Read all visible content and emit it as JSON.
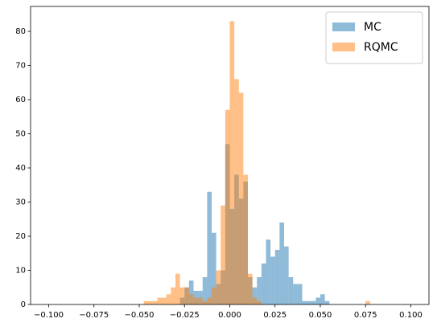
{
  "chart_data": {
    "type": "histogram",
    "bins": [
      -0.1,
      -0.0975,
      -0.095,
      -0.0925,
      -0.09,
      -0.0875,
      -0.085,
      -0.0825,
      -0.08,
      -0.0775,
      -0.075,
      -0.0725,
      -0.07,
      -0.0675,
      -0.065,
      -0.0625,
      -0.06,
      -0.0575,
      -0.055,
      -0.0525,
      -0.05,
      -0.0475,
      -0.045,
      -0.0425,
      -0.04,
      -0.0375,
      -0.035,
      -0.0325,
      -0.03,
      -0.0275,
      -0.025,
      -0.0225,
      -0.02,
      -0.0175,
      -0.015,
      -0.0125,
      -0.01,
      -0.0075,
      -0.005,
      -0.0025,
      0,
      0.0025,
      0.005,
      0.0075,
      0.01,
      0.0125,
      0.015,
      0.0175,
      0.02,
      0.0225,
      0.025,
      0.0275,
      0.03,
      0.0325,
      0.035,
      0.0375,
      0.04,
      0.0425,
      0.045,
      0.0475,
      0.05,
      0.0525,
      0.055,
      0.0575,
      0.06,
      0.0625,
      0.065,
      0.0675,
      0.07,
      0.0725,
      0.075,
      0.0775,
      0.08,
      0.0825,
      0.085,
      0.0875,
      0.09,
      0.0925,
      0.095,
      0.0975,
      0.1
    ],
    "series": [
      {
        "name": "MC",
        "color": "#1f77b4",
        "values": [
          0,
          0,
          0,
          0,
          0,
          0,
          0,
          0,
          0,
          0,
          0,
          0,
          0,
          0,
          0,
          0,
          0,
          0,
          0,
          0,
          0,
          0,
          0,
          0,
          0,
          0,
          0,
          0,
          0,
          2,
          5,
          7,
          4,
          4,
          8,
          33,
          21,
          6,
          10,
          47,
          28,
          38,
          31,
          36,
          8,
          5,
          8,
          12,
          19,
          14,
          16,
          24,
          17,
          8,
          6,
          6,
          1,
          1,
          1,
          2,
          3,
          1,
          0,
          0,
          0,
          0,
          0,
          0,
          0,
          0,
          0,
          0,
          0,
          0,
          0,
          0,
          0,
          0,
          0,
          0
        ]
      },
      {
        "name": "RQMC",
        "color": "#ff7f0e",
        "values": [
          0,
          0,
          0,
          0,
          0,
          0,
          0,
          0,
          0,
          0,
          0,
          0,
          0,
          0,
          0,
          0,
          0,
          0,
          0,
          0,
          0,
          1,
          1,
          1,
          2,
          2,
          3,
          5,
          9,
          5,
          5,
          3,
          2,
          2,
          1,
          2,
          5,
          10,
          29,
          57,
          83,
          66,
          62,
          38,
          9,
          2,
          1,
          0,
          0,
          0,
          0,
          0,
          0,
          0,
          0,
          0,
          0,
          0,
          0,
          0,
          0,
          0,
          0,
          0,
          0,
          0,
          0,
          0,
          0,
          0,
          1,
          0,
          0,
          0,
          0,
          0,
          0,
          0,
          0,
          0
        ]
      }
    ],
    "alpha": 0.5,
    "xlim": [
      -0.11,
      0.11
    ],
    "ylim": [
      0,
      87.3
    ],
    "xticks": [
      {
        "value": -0.1,
        "label": "−0.100"
      },
      {
        "value": -0.075,
        "label": "−0.075"
      },
      {
        "value": -0.05,
        "label": "−0.050"
      },
      {
        "value": -0.025,
        "label": "−0.025"
      },
      {
        "value": 0,
        "label": "0.000"
      },
      {
        "value": 0.025,
        "label": "0.025"
      },
      {
        "value": 0.05,
        "label": "0.050"
      },
      {
        "value": 0.075,
        "label": "0.075"
      },
      {
        "value": 0.1,
        "label": "0.100"
      }
    ],
    "yticks": [
      0,
      10,
      20,
      30,
      40,
      50,
      60,
      70,
      80
    ],
    "legend": "upper right",
    "grid": false
  }
}
